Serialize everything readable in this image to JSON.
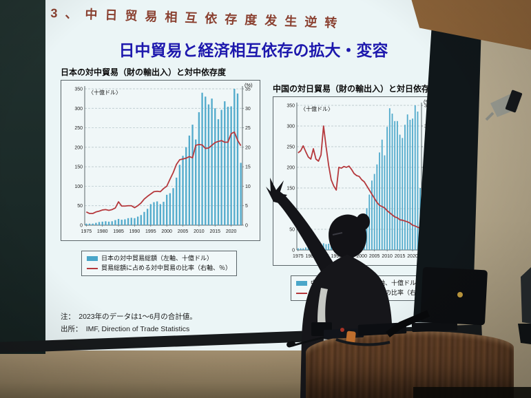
{
  "slide": {
    "handwritten_header": "3、中日贸易相互依存度发生逆转",
    "title": "日中貿易と経済相互依存の拡大・変容",
    "note_line1": "注：　2023年のデータは1～6月の合計値。",
    "note_line2": "出所：　IMF, Direction of Trade Statistics"
  },
  "chart_data": [
    {
      "type": "bar+line",
      "title": "日本の対中貿易（財の輸出入）と対中依存度",
      "unit_left": "〈十億ドル〉",
      "unit_right": "(%)",
      "x_range": [
        1975,
        2023
      ],
      "x_ticks": [
        1975,
        1980,
        1985,
        1990,
        1995,
        2000,
        2005,
        2010,
        2015,
        2020
      ],
      "left_ylim": [
        0,
        350
      ],
      "left_step": 50,
      "right_ylim": [
        0,
        35
      ],
      "right_step": 5,
      "grid": "dashed-horizontal",
      "legend_position": "below",
      "colors": {
        "bar": "#4aa6c9",
        "line": "#b5383c"
      },
      "series": [
        {
          "name": "日本の対中貿易総額（左軸、十億ドル）",
          "kind": "bar",
          "axis": "left",
          "values": [
            4,
            4,
            4,
            6,
            8,
            9,
            10,
            9,
            10,
            13,
            16,
            14,
            15,
            18,
            19,
            18,
            22,
            26,
            34,
            42,
            54,
            59,
            61,
            54,
            60,
            78,
            82,
            95,
            122,
            155,
            178,
            200,
            230,
            258,
            220,
            290,
            340,
            330,
            310,
            325,
            300,
            272,
            296,
            318,
            304,
            305,
            350,
            338,
            160
          ]
        },
        {
          "name": "貿易総額に占める対中貿易の比率（右軸、％）",
          "kind": "line",
          "axis": "right",
          "values": [
            3.4,
            3.0,
            3.0,
            3.4,
            3.6,
            3.9,
            4.0,
            3.8,
            4.0,
            4.4,
            6.0,
            4.9,
            4.9,
            5.0,
            5.0,
            4.5,
            5.0,
            5.7,
            6.7,
            7.4,
            8.0,
            8.6,
            8.7,
            8.6,
            9.4,
            10.0,
            11.8,
            13.5,
            15.6,
            16.8,
            17.0,
            17.2,
            17.6,
            17.3,
            20.5,
            20.7,
            20.6,
            19.7,
            19.8,
            20.5,
            21.2,
            21.5,
            21.7,
            21.3,
            21.3,
            23.5,
            23.9,
            21.8,
            20.4
          ]
        }
      ]
    },
    {
      "type": "bar+line",
      "title": "中国の対日貿易（財の輸出入）と対日依存度",
      "unit_left": "〈十億ドル〉",
      "unit_right": "(%)",
      "x_range": [
        1975,
        2023
      ],
      "x_ticks": [
        1975,
        1980,
        1985,
        1990,
        1995,
        2000,
        2005,
        2010,
        2015,
        2020
      ],
      "left_ylim": [
        0,
        350
      ],
      "left_step": 50,
      "right_ylim": [
        0,
        35
      ],
      "right_step": 5,
      "grid": "dashed-horizontal",
      "legend_position": "below",
      "colors": {
        "bar": "#4aa6c9",
        "line": "#b5383c"
      },
      "series": [
        {
          "name": "中国の対日貿易総額（左軸、十億ドル）",
          "kind": "bar",
          "axis": "left",
          "values": [
            4,
            4,
            4,
            6,
            8,
            9,
            10,
            9,
            10,
            13,
            16,
            14,
            15,
            19,
            19,
            18,
            20,
            25,
            39,
            46,
            57,
            60,
            61,
            55,
            66,
            83,
            88,
            101,
            134,
            168,
            184,
            207,
            236,
            267,
            229,
            298,
            343,
            330,
            312,
            312,
            279,
            271,
            303,
            328,
            315,
            318,
            350,
            335,
            150
          ]
        },
        {
          "name": "貿易総額に占める対日貿易の比率（右軸、％）",
          "kind": "line",
          "axis": "right",
          "values": [
            23.5,
            24.0,
            25.2,
            23.8,
            22.5,
            22.0,
            24.5,
            22.0,
            21.5,
            23.0,
            30.0,
            25.0,
            20.5,
            17.0,
            15.5,
            14.5,
            20.0,
            19.8,
            20.2,
            20.0,
            20.3,
            19.5,
            18.5,
            18.0,
            17.8,
            17.0,
            16.5,
            15.5,
            14.5,
            13.5,
            12.5,
            11.5,
            10.8,
            10.5,
            10.2,
            9.5,
            9.0,
            8.5,
            8.0,
            7.8,
            7.3,
            7.2,
            7.0,
            6.8,
            6.5,
            6.0,
            5.8,
            5.5,
            5.3
          ]
        }
      ]
    }
  ],
  "colors": {
    "slide_bg": "#ebf5f6",
    "handwritten_header": "#8a4030",
    "main_title": "#1d18ad",
    "bar": "#4aa6c9",
    "line": "#b5383c"
  }
}
